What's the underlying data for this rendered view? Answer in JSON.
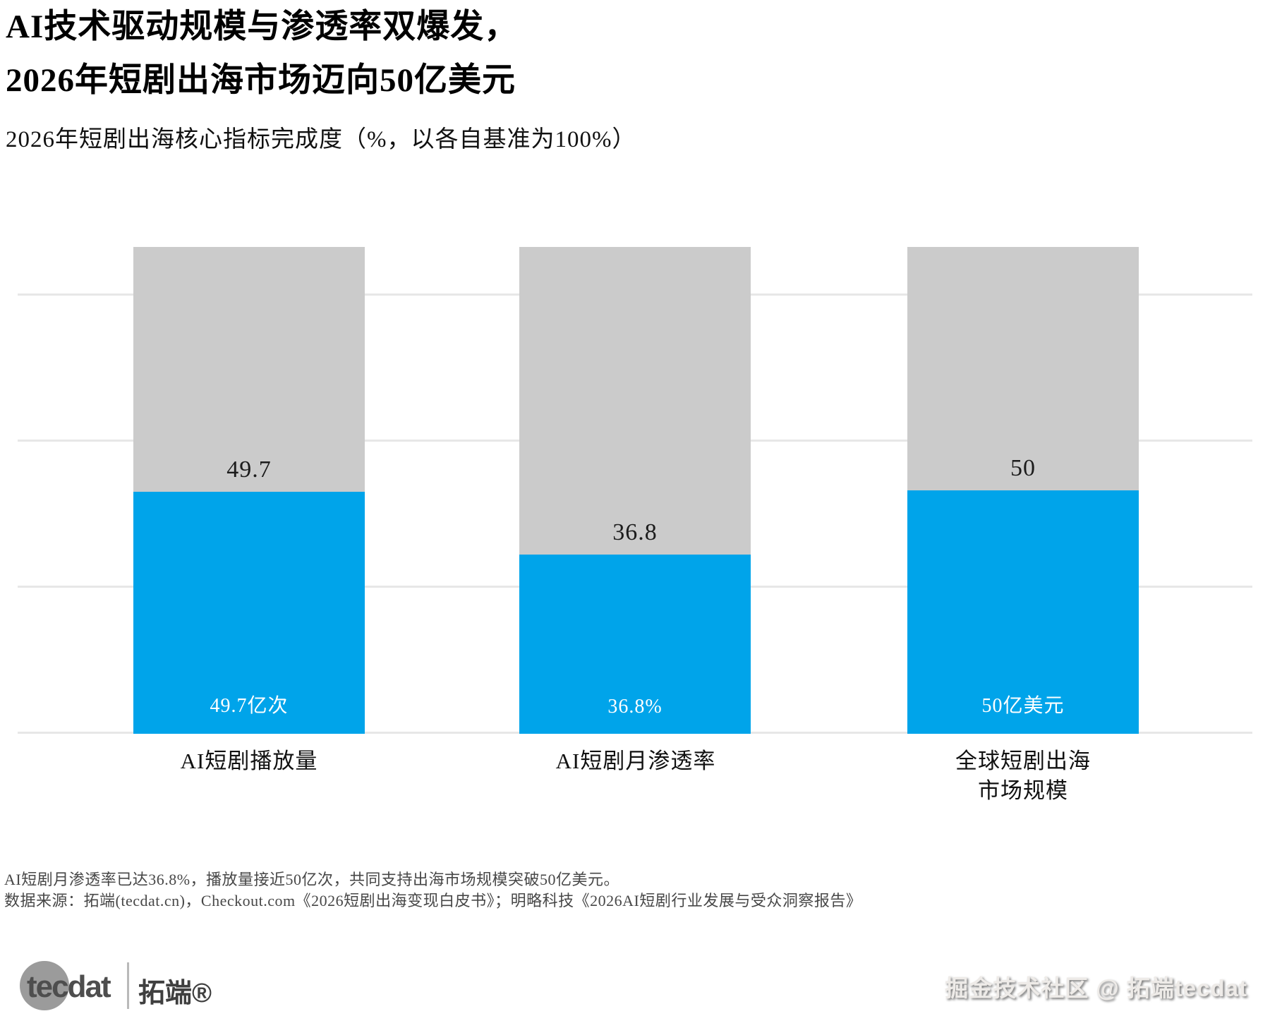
{
  "header": {
    "title_line1": "AI技术驱动规模与渗透率双爆发，",
    "title_line2": "2026年短剧出海市场迈向50亿美元",
    "subtitle": "2026年短剧出海核心指标完成度（%，以各自基准为100%）"
  },
  "chart_data": {
    "type": "bar",
    "title": "2026年短剧出海核心指标完成度（%，以各自基准为100%）",
    "categories": [
      "AI短剧播放量",
      "AI短剧月渗透率",
      "全球短剧出海 市场规模"
    ],
    "values": [
      49.7,
      36.8,
      50
    ],
    "baseline_max": 100,
    "bar_value_labels": [
      "49.7",
      "36.8",
      "50"
    ],
    "bar_inner_labels": [
      "49.7亿次",
      "36.8%",
      "50亿美元"
    ],
    "x_tick_lines": [
      [
        "AI短剧播放量"
      ],
      [
        "AI短剧月渗透率"
      ],
      [
        "全球短剧出海",
        "市场规模"
      ]
    ],
    "xlabel": "",
    "ylabel": "",
    "ylim": [
      0,
      100
    ],
    "gridlines": [
      0,
      30,
      60,
      90
    ],
    "grid": "horizontal",
    "legend_position": "none"
  },
  "footer": {
    "note": "AI短剧月渗透率已达36.8%，播放量接近50亿次，共同支持出海市场规模突破50亿美元。",
    "source": "数据来源：拓端(tecdat.cn)，Checkout.com《2026短剧出海变现白皮书》；明略科技《2026AI短剧行业发展与受众洞察报告》"
  },
  "branding": {
    "logo_latin": "tecdat",
    "logo_cn": "拓端®",
    "watermark": "掘金技术社区 @ 拓端tecdat"
  },
  "colors": {
    "blue": "#00A4EA",
    "gray": "#CBCBCB",
    "grid": "#E7E7E7"
  }
}
